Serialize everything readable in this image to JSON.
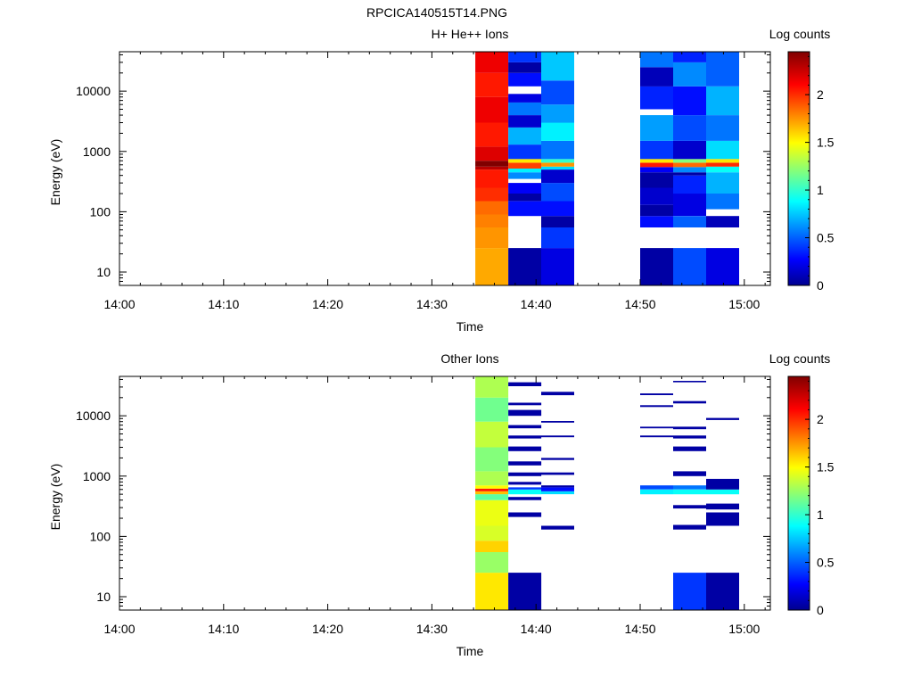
{
  "figure_title": "RPCICA140515T14.PNG",
  "chart_data": [
    {
      "type": "heatmap",
      "title": "H+ He++ Ions",
      "xlabel": "Time",
      "ylabel": "Energy (eV)",
      "y_scale": "log",
      "ylim": [
        6,
        45000
      ],
      "xlim": [
        "14:00",
        "15:02:30"
      ],
      "x_ticks": [
        "14:00",
        "14:10",
        "14:20",
        "14:30",
        "14:40",
        "14:50",
        "15:00"
      ],
      "y_ticks": [
        "10",
        "100",
        "1000",
        "10000"
      ],
      "colorbar": {
        "label": "Log counts",
        "range": [
          0,
          2.45
        ],
        "ticks": [
          "0",
          "0.5",
          "1",
          "1.5",
          "2"
        ]
      },
      "grid": false,
      "columns": [
        {
          "start": "14:34:10",
          "end": "14:37:20",
          "cells": [
            {
              "emin": 6,
              "emax": 25,
              "value": 1.7
            },
            {
              "emin": 25,
              "emax": 55,
              "value": 1.75
            },
            {
              "emin": 55,
              "emax": 90,
              "value": 1.8
            },
            {
              "emin": 90,
              "emax": 150,
              "value": 1.85
            },
            {
              "emin": 150,
              "emax": 250,
              "value": 2.0
            },
            {
              "emin": 250,
              "emax": 500,
              "value": 2.05
            },
            {
              "emin": 500,
              "emax": 560,
              "value": 2.3
            },
            {
              "emin": 560,
              "emax": 700,
              "value": 2.45
            },
            {
              "emin": 700,
              "emax": 1200,
              "value": 2.2
            },
            {
              "emin": 1200,
              "emax": 3000,
              "value": 2.05
            },
            {
              "emin": 3000,
              "emax": 8000,
              "value": 2.15
            },
            {
              "emin": 8000,
              "emax": 20000,
              "value": 2.05
            },
            {
              "emin": 20000,
              "emax": 45000,
              "value": 2.15
            }
          ]
        },
        {
          "start": "14:37:20",
          "end": "14:40:30",
          "cells": [
            {
              "emin": 6,
              "emax": 25,
              "value": 0.05
            },
            {
              "emin": 85,
              "emax": 150,
              "value": 0.3
            },
            {
              "emin": 150,
              "emax": 200,
              "value": 0.05
            },
            {
              "emin": 200,
              "emax": 300,
              "value": 0.25
            },
            {
              "emin": 350,
              "emax": 450,
              "value": 0.6
            },
            {
              "emin": 450,
              "emax": 520,
              "value": 0.85
            },
            {
              "emin": 520,
              "emax": 650,
              "value": 1.95
            },
            {
              "emin": 650,
              "emax": 750,
              "value": 1.55
            },
            {
              "emin": 750,
              "emax": 1300,
              "value": 0.4
            },
            {
              "emin": 1300,
              "emax": 2500,
              "value": 0.7
            },
            {
              "emin": 2500,
              "emax": 4000,
              "value": 0.15
            },
            {
              "emin": 4000,
              "emax": 6500,
              "value": 0.55
            },
            {
              "emin": 6500,
              "emax": 9000,
              "value": 0.2
            },
            {
              "emin": 12000,
              "emax": 20000,
              "value": 0.3
            },
            {
              "emin": 20000,
              "emax": 30000,
              "value": 0.05
            },
            {
              "emin": 30000,
              "emax": 45000,
              "value": 0.4
            }
          ]
        },
        {
          "start": "14:40:30",
          "end": "14:43:40",
          "cells": [
            {
              "emin": 6,
              "emax": 25,
              "value": 0.2
            },
            {
              "emin": 25,
              "emax": 55,
              "value": 0.4
            },
            {
              "emin": 55,
              "emax": 85,
              "value": 0.05
            },
            {
              "emin": 85,
              "emax": 150,
              "value": 0.3
            },
            {
              "emin": 150,
              "emax": 300,
              "value": 0.45
            },
            {
              "emin": 300,
              "emax": 500,
              "value": 0.15
            },
            {
              "emin": 500,
              "emax": 560,
              "value": 0.8
            },
            {
              "emin": 560,
              "emax": 650,
              "value": 1.75
            },
            {
              "emin": 650,
              "emax": 750,
              "value": 1.0
            },
            {
              "emin": 750,
              "emax": 1500,
              "value": 0.55
            },
            {
              "emin": 1500,
              "emax": 3000,
              "value": 0.85
            },
            {
              "emin": 3000,
              "emax": 6000,
              "value": 0.65
            },
            {
              "emin": 6000,
              "emax": 15000,
              "value": 0.45
            },
            {
              "emin": 15000,
              "emax": 45000,
              "value": 0.75
            }
          ]
        },
        {
          "start": "14:50:00",
          "end": "14:53:10",
          "cells": [
            {
              "emin": 6,
              "emax": 25,
              "value": 0.05
            },
            {
              "emin": 55,
              "emax": 85,
              "value": 0.3
            },
            {
              "emin": 85,
              "emax": 130,
              "value": 0.05
            },
            {
              "emin": 130,
              "emax": 250,
              "value": 0.15
            },
            {
              "emin": 250,
              "emax": 450,
              "value": 0.05
            },
            {
              "emin": 450,
              "emax": 550,
              "value": 0.25
            },
            {
              "emin": 550,
              "emax": 650,
              "value": 2.05
            },
            {
              "emin": 650,
              "emax": 750,
              "value": 1.55
            },
            {
              "emin": 750,
              "emax": 1500,
              "value": 0.4
            },
            {
              "emin": 1500,
              "emax": 4000,
              "value": 0.65
            },
            {
              "emin": 5000,
              "emax": 12000,
              "value": 0.35
            },
            {
              "emin": 12000,
              "emax": 25000,
              "value": 0.1
            },
            {
              "emin": 25000,
              "emax": 45000,
              "value": 0.55
            }
          ]
        },
        {
          "start": "14:53:10",
          "end": "14:56:20",
          "cells": [
            {
              "emin": 6,
              "emax": 25,
              "value": 0.45
            },
            {
              "emin": 55,
              "emax": 85,
              "value": 0.5
            },
            {
              "emin": 85,
              "emax": 200,
              "value": 0.2
            },
            {
              "emin": 200,
              "emax": 400,
              "value": 0.35
            },
            {
              "emin": 400,
              "emax": 450,
              "value": 0.05
            },
            {
              "emin": 450,
              "emax": 550,
              "value": 0.6
            },
            {
              "emin": 550,
              "emax": 650,
              "value": 1.85
            },
            {
              "emin": 650,
              "emax": 750,
              "value": 1.2
            },
            {
              "emin": 750,
              "emax": 1500,
              "value": 0.15
            },
            {
              "emin": 1500,
              "emax": 4000,
              "value": 0.45
            },
            {
              "emin": 4000,
              "emax": 12000,
              "value": 0.3
            },
            {
              "emin": 12000,
              "emax": 30000,
              "value": 0.6
            },
            {
              "emin": 30000,
              "emax": 45000,
              "value": 0.35
            }
          ]
        },
        {
          "start": "14:56:20",
          "end": "14:59:30",
          "cells": [
            {
              "emin": 6,
              "emax": 25,
              "value": 0.2
            },
            {
              "emin": 55,
              "emax": 85,
              "value": 0.1
            },
            {
              "emin": 110,
              "emax": 200,
              "value": 0.55
            },
            {
              "emin": 200,
              "emax": 450,
              "value": 0.7
            },
            {
              "emin": 450,
              "emax": 560,
              "value": 0.9
            },
            {
              "emin": 560,
              "emax": 650,
              "value": 2.0
            },
            {
              "emin": 650,
              "emax": 750,
              "value": 1.55
            },
            {
              "emin": 750,
              "emax": 1500,
              "value": 0.8
            },
            {
              "emin": 1500,
              "emax": 4000,
              "value": 0.55
            },
            {
              "emin": 4000,
              "emax": 12000,
              "value": 0.7
            },
            {
              "emin": 12000,
              "emax": 45000,
              "value": 0.5
            }
          ]
        }
      ]
    },
    {
      "type": "heatmap",
      "title": "Other Ions",
      "xlabel": "Time",
      "ylabel": "Energy (eV)",
      "y_scale": "log",
      "ylim": [
        6,
        45000
      ],
      "xlim": [
        "14:00",
        "15:02:30"
      ],
      "x_ticks": [
        "14:00",
        "14:10",
        "14:20",
        "14:30",
        "14:40",
        "14:50",
        "15:00"
      ],
      "y_ticks": [
        "10",
        "100",
        "1000",
        "10000"
      ],
      "colorbar": {
        "label": "Log counts",
        "range": [
          0,
          2.45
        ],
        "ticks": [
          "0",
          "0.5",
          "1",
          "1.5",
          "2"
        ]
      },
      "grid": false,
      "columns": [
        {
          "start": "14:34:10",
          "end": "14:37:20",
          "cells": [
            {
              "emin": 6,
              "emax": 25,
              "value": 1.55
            },
            {
              "emin": 25,
              "emax": 55,
              "value": 1.25
            },
            {
              "emin": 55,
              "emax": 85,
              "value": 1.6
            },
            {
              "emin": 85,
              "emax": 150,
              "value": 1.4
            },
            {
              "emin": 150,
              "emax": 400,
              "value": 1.45
            },
            {
              "emin": 400,
              "emax": 500,
              "value": 1.1
            },
            {
              "emin": 500,
              "emax": 560,
              "value": 1.65
            },
            {
              "emin": 560,
              "emax": 620,
              "value": 2.05
            },
            {
              "emin": 620,
              "emax": 700,
              "value": 1.5
            },
            {
              "emin": 700,
              "emax": 1200,
              "value": 1.3
            },
            {
              "emin": 1200,
              "emax": 3000,
              "value": 1.2
            },
            {
              "emin": 3000,
              "emax": 8000,
              "value": 1.35
            },
            {
              "emin": 8000,
              "emax": 20000,
              "value": 1.15
            },
            {
              "emin": 20000,
              "emax": 45000,
              "value": 1.3
            }
          ]
        },
        {
          "start": "14:37:20",
          "end": "14:40:30",
          "cells": [
            {
              "emin": 6,
              "emax": 25,
              "value": 0.05
            },
            {
              "emin": 210,
              "emax": 250,
              "value": 0.05
            },
            {
              "emin": 400,
              "emax": 450,
              "value": 0.05
            },
            {
              "emin": 500,
              "emax": 600,
              "value": 0.9
            },
            {
              "emin": 600,
              "emax": 650,
              "value": 0.4
            },
            {
              "emin": 720,
              "emax": 800,
              "value": 0.05
            },
            {
              "emin": 1000,
              "emax": 1150,
              "value": 0.05
            },
            {
              "emin": 1500,
              "emax": 1750,
              "value": 0.05
            },
            {
              "emin": 2600,
              "emax": 3100,
              "value": 0.05
            },
            {
              "emin": 4200,
              "emax": 4700,
              "value": 0.05
            },
            {
              "emin": 6200,
              "emax": 7000,
              "value": 0.05
            },
            {
              "emin": 10000,
              "emax": 12500,
              "value": 0.05
            },
            {
              "emin": 15000,
              "emax": 16500,
              "value": 0.05
            },
            {
              "emin": 31000,
              "emax": 36000,
              "value": 0.05
            }
          ]
        },
        {
          "start": "14:40:30",
          "end": "14:43:40",
          "cells": [
            {
              "emin": 130,
              "emax": 150,
              "value": 0.05
            },
            {
              "emin": 500,
              "emax": 560,
              "value": 0.8
            },
            {
              "emin": 560,
              "emax": 650,
              "value": 0.3
            },
            {
              "emin": 650,
              "emax": 700,
              "value": 0.05
            },
            {
              "emin": 1050,
              "emax": 1150,
              "value": 0.05
            },
            {
              "emin": 1850,
              "emax": 2000,
              "value": 0.05
            },
            {
              "emin": 4400,
              "emax": 4700,
              "value": 0.05
            },
            {
              "emin": 7700,
              "emax": 8200,
              "value": 0.05
            },
            {
              "emin": 22000,
              "emax": 25000,
              "value": 0.05
            }
          ]
        },
        {
          "start": "14:50:00",
          "end": "14:53:10",
          "cells": [
            {
              "emin": 500,
              "emax": 600,
              "value": 0.85
            },
            {
              "emin": 600,
              "emax": 700,
              "value": 0.45
            },
            {
              "emin": 4400,
              "emax": 4700,
              "value": 0.05
            },
            {
              "emin": 6200,
              "emax": 6600,
              "value": 0.05
            },
            {
              "emin": 14000,
              "emax": 15000,
              "value": 0.05
            },
            {
              "emin": 22000,
              "emax": 23500,
              "value": 0.05
            }
          ]
        },
        {
          "start": "14:53:10",
          "end": "14:56:20",
          "cells": [
            {
              "emin": 6,
              "emax": 25,
              "value": 0.4
            },
            {
              "emin": 130,
              "emax": 155,
              "value": 0.05
            },
            {
              "emin": 290,
              "emax": 330,
              "value": 0.05
            },
            {
              "emin": 500,
              "emax": 600,
              "value": 0.9
            },
            {
              "emin": 600,
              "emax": 700,
              "value": 0.55
            },
            {
              "emin": 1000,
              "emax": 1200,
              "value": 0.05
            },
            {
              "emin": 2600,
              "emax": 3100,
              "value": 0.05
            },
            {
              "emin": 4200,
              "emax": 4700,
              "value": 0.05
            },
            {
              "emin": 6000,
              "emax": 6600,
              "value": 0.05
            },
            {
              "emin": 16000,
              "emax": 17500,
              "value": 0.05
            },
            {
              "emin": 36000,
              "emax": 38000,
              "value": 0.05
            }
          ]
        },
        {
          "start": "14:56:20",
          "end": "14:59:30",
          "cells": [
            {
              "emin": 6,
              "emax": 25,
              "value": 0.05
            },
            {
              "emin": 150,
              "emax": 250,
              "value": 0.05
            },
            {
              "emin": 280,
              "emax": 350,
              "value": 0.05
            },
            {
              "emin": 500,
              "emax": 600,
              "value": 0.9
            },
            {
              "emin": 600,
              "emax": 900,
              "value": 0.05
            },
            {
              "emin": 8500,
              "emax": 9200,
              "value": 0.05
            }
          ]
        }
      ]
    }
  ]
}
